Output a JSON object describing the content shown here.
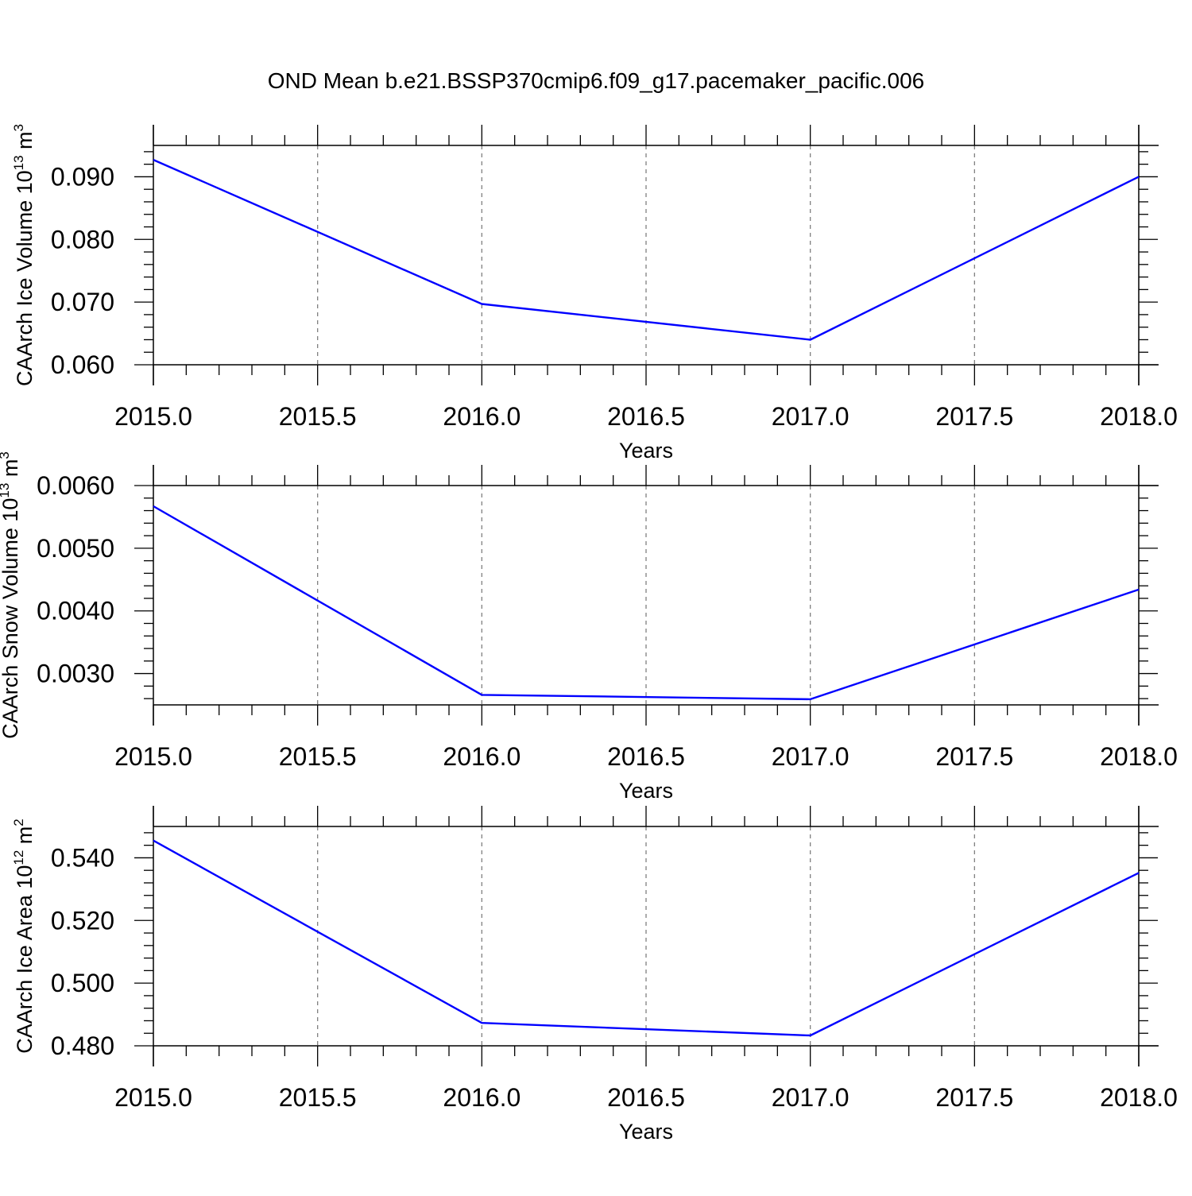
{
  "title": "OND Mean b.e21.BSSP370cmip6.f09_g17.pacemaker_pacific.006",
  "chart_data": [
    {
      "type": "line",
      "xlabel": "Years",
      "ylabel": {
        "text": "CAArch Ice Volume 10",
        "sup": "13",
        "unit": " m",
        "unit_sup": "3"
      },
      "xlim": [
        2015.0,
        2018.0
      ],
      "ylim": [
        0.06,
        0.095
      ],
      "x_ticks": [
        "2015.0",
        "2015.5",
        "2016.0",
        "2016.5",
        "2017.0",
        "2017.5",
        "2018.0"
      ],
      "y_ticks": [
        "0.060",
        "0.070",
        "0.080",
        "0.090"
      ],
      "grid": "x-dashed",
      "series": [
        {
          "x": [
            2015,
            2016,
            2017,
            2018
          ],
          "values": [
            0.0927,
            0.0697,
            0.064,
            0.09
          ],
          "color": "#0000ff"
        }
      ]
    },
    {
      "type": "line",
      "xlabel": "Years",
      "ylabel": {
        "text": "CAArch Snow Volume 10",
        "sup": "13",
        "unit": " m",
        "unit_sup": "3"
      },
      "xlim": [
        2015.0,
        2018.0
      ],
      "ylim": [
        0.0025,
        0.006
      ],
      "x_ticks": [
        "2015.0",
        "2015.5",
        "2016.0",
        "2016.5",
        "2017.0",
        "2017.5",
        "2018.0"
      ],
      "y_ticks": [
        "0.0030",
        "0.0040",
        "0.0050",
        "0.0060"
      ],
      "grid": "x-dashed",
      "series": [
        {
          "x": [
            2015,
            2016,
            2017,
            2018
          ],
          "values": [
            0.00567,
            0.00266,
            0.00259,
            0.00434
          ],
          "color": "#0000ff"
        }
      ]
    },
    {
      "type": "line",
      "xlabel": "Years",
      "ylabel": {
        "text": "CAArch Ice Area 10",
        "sup": "12",
        "unit": " m",
        "unit_sup": "2"
      },
      "xlim": [
        2015.0,
        2018.0
      ],
      "ylim": [
        0.48,
        0.55
      ],
      "x_ticks": [
        "2015.0",
        "2015.5",
        "2016.0",
        "2016.5",
        "2017.0",
        "2017.5",
        "2018.0"
      ],
      "y_ticks": [
        "0.480",
        "0.500",
        "0.520",
        "0.540"
      ],
      "grid": "x-dashed",
      "series": [
        {
          "x": [
            2015,
            2016,
            2017,
            2018
          ],
          "values": [
            0.5455,
            0.4873,
            0.4833,
            0.5352
          ],
          "color": "#0000ff"
        }
      ]
    }
  ]
}
